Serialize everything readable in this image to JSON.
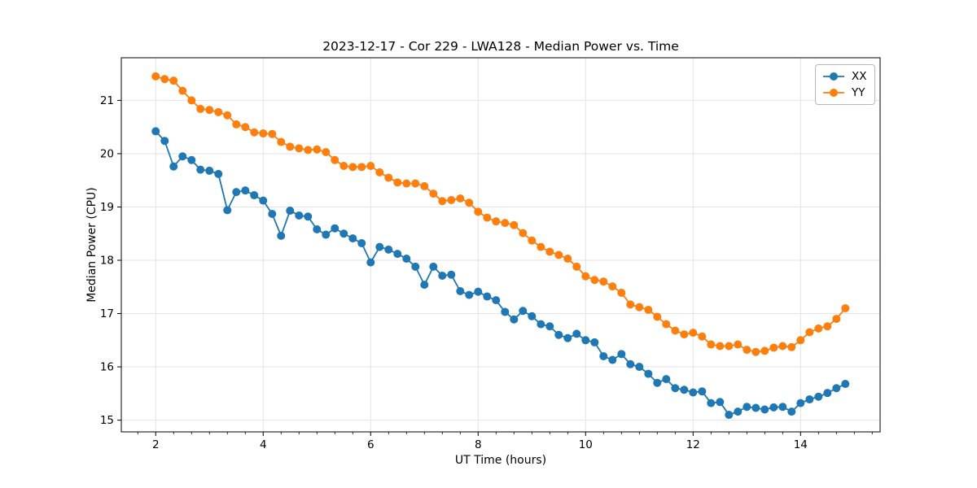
{
  "chart_data": {
    "type": "line",
    "title": "2023-12-17 - Cor 229 - LWA128 - Median Power vs. Time",
    "xlabel": "UT Time (hours)",
    "ylabel": "Median Power (CPU)",
    "xlim": [
      1.36,
      15.48
    ],
    "ylim": [
      14.78,
      21.8
    ],
    "x_ticks": [
      2,
      4,
      6,
      8,
      10,
      12,
      14
    ],
    "y_ticks": [
      15,
      16,
      17,
      18,
      19,
      20,
      21
    ],
    "x_minor_step": 0.3333,
    "grid": true,
    "grid_color": "#e3e3e3",
    "spine_color": "#000000",
    "legend_position": "upper right",
    "marker": "o",
    "x": [
      2.0,
      2.167,
      2.333,
      2.5,
      2.667,
      2.833,
      3.0,
      3.167,
      3.333,
      3.5,
      3.667,
      3.833,
      4.0,
      4.167,
      4.333,
      4.5,
      4.667,
      4.833,
      5.0,
      5.167,
      5.333,
      5.5,
      5.667,
      5.833,
      6.0,
      6.167,
      6.333,
      6.5,
      6.667,
      6.833,
      7.0,
      7.167,
      7.333,
      7.5,
      7.667,
      7.833,
      8.0,
      8.167,
      8.333,
      8.5,
      8.667,
      8.833,
      9.0,
      9.167,
      9.333,
      9.5,
      9.667,
      9.833,
      10.0,
      10.167,
      10.333,
      10.5,
      10.667,
      10.833,
      11.0,
      11.167,
      11.333,
      11.5,
      11.667,
      11.833,
      12.0,
      12.167,
      12.333,
      12.5,
      12.667,
      12.833,
      13.0,
      13.167,
      13.333,
      13.5,
      13.667,
      13.833,
      14.0,
      14.167,
      14.333,
      14.5,
      14.667,
      14.833
    ],
    "series": [
      {
        "name": "XX",
        "color": "#1f77b4",
        "values": [
          20.42,
          20.24,
          19.76,
          19.95,
          19.88,
          19.7,
          19.68,
          19.62,
          18.94,
          19.28,
          19.31,
          19.22,
          19.12,
          18.87,
          18.46,
          18.93,
          18.84,
          18.82,
          18.58,
          18.48,
          18.6,
          18.5,
          18.41,
          18.32,
          17.96,
          18.25,
          18.2,
          18.12,
          18.03,
          17.88,
          17.54,
          17.88,
          17.71,
          17.73,
          17.42,
          17.35,
          17.41,
          17.32,
          17.25,
          17.03,
          16.89,
          17.05,
          16.95,
          16.8,
          16.76,
          16.6,
          16.54,
          16.62,
          16.5,
          16.46,
          16.2,
          16.13,
          16.24,
          16.05,
          16.0,
          15.87,
          15.7,
          15.77,
          15.6,
          15.57,
          15.52,
          15.54,
          15.32,
          15.34,
          15.1,
          15.16,
          15.25,
          15.23,
          15.2,
          15.24,
          15.25,
          15.16,
          15.32,
          15.39,
          15.44,
          15.51,
          15.6,
          15.68
        ]
      },
      {
        "name": "YY",
        "color": "#ff7f0e",
        "values": [
          21.45,
          21.4,
          21.37,
          21.18,
          21.0,
          20.84,
          20.82,
          20.78,
          20.72,
          20.55,
          20.5,
          20.4,
          20.38,
          20.37,
          20.22,
          20.13,
          20.1,
          20.07,
          20.08,
          20.03,
          19.88,
          19.77,
          19.75,
          19.75,
          19.77,
          19.65,
          19.55,
          19.46,
          19.44,
          19.44,
          19.39,
          19.25,
          19.11,
          19.13,
          19.16,
          19.08,
          18.91,
          18.8,
          18.73,
          18.7,
          18.66,
          18.51,
          18.37,
          18.25,
          18.16,
          18.1,
          18.03,
          17.88,
          17.7,
          17.63,
          17.6,
          17.51,
          17.39,
          17.17,
          17.12,
          17.07,
          16.94,
          16.8,
          16.68,
          16.61,
          16.64,
          16.57,
          16.42,
          16.39,
          16.39,
          16.42,
          16.32,
          16.28,
          16.3,
          16.36,
          16.39,
          16.37,
          16.5,
          16.65,
          16.72,
          16.76,
          16.9,
          17.1
        ]
      }
    ]
  }
}
